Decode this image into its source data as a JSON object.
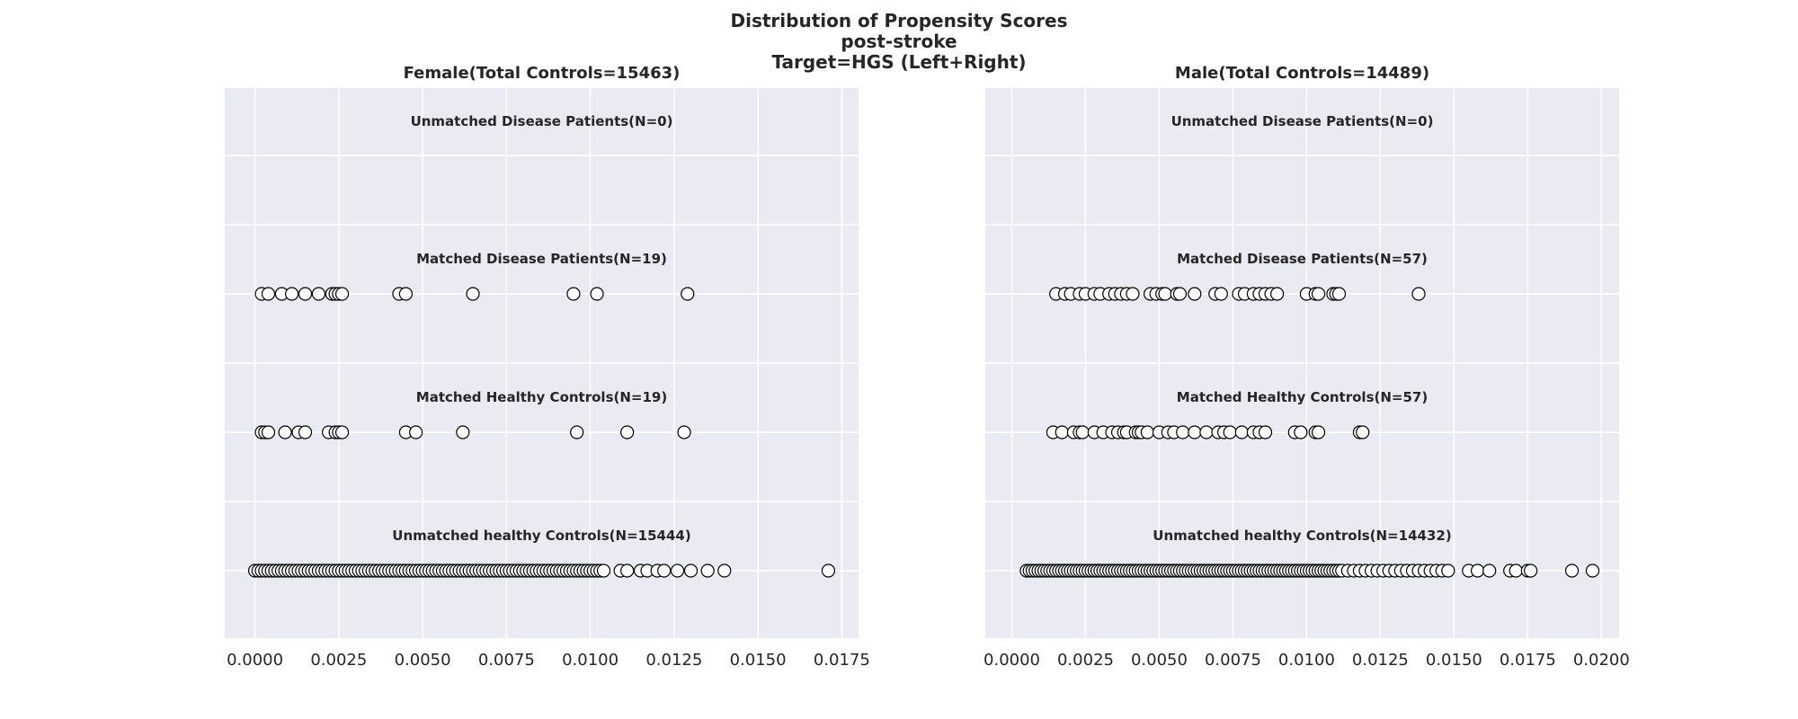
{
  "title_lines": [
    "Distribution of Propensity Scores",
    "post-stroke",
    "Target=HGS (Left+Right)"
  ],
  "style": {
    "panel_bg": "#EAEAF2",
    "grid": "#FFFFFF",
    "marker_edge": "#000000",
    "marker_face": "#FFFFFF"
  },
  "chart_data": [
    {
      "type": "scatter",
      "title": "Female(Total Controls=15463)",
      "xlim": [
        -0.0009,
        0.018
      ],
      "xticks": [
        "0.0000",
        "0.0025",
        "0.0050",
        "0.0075",
        "0.0100",
        "0.0125",
        "0.0150",
        "0.0175"
      ],
      "grid": true,
      "rows": [
        {
          "label": "Unmatched Disease Patients(N=0)",
          "x": []
        },
        {
          "label": "Matched Disease Patients(N=19)",
          "x": [
            0.0002,
            0.0004,
            0.0008,
            0.0011,
            0.0015,
            0.0019,
            0.0023,
            0.0024,
            0.0025,
            0.0026,
            0.0043,
            0.0045,
            0.0065,
            0.0095,
            0.0102,
            0.0129
          ]
        },
        {
          "label": "Matched Healthy Controls(N=19)",
          "x": [
            0.0002,
            0.0003,
            0.0004,
            0.0009,
            0.0013,
            0.0015,
            0.0022,
            0.0024,
            0.0025,
            0.0026,
            0.0045,
            0.0048,
            0.0062,
            0.0096,
            0.0111,
            0.0128
          ]
        },
        {
          "label": "Unmatched healthy Controls(N=15444)",
          "x": [
            0.0,
            0.0001,
            0.0002,
            0.0003,
            0.0004,
            0.0005,
            0.0006,
            0.0007,
            0.0008,
            0.0009,
            0.001,
            0.0011,
            0.0012,
            0.0013,
            0.0014,
            0.0015,
            0.0016,
            0.0017,
            0.0018,
            0.0019,
            0.002,
            0.0021,
            0.0022,
            0.0023,
            0.0024,
            0.0025,
            0.0026,
            0.0027,
            0.0028,
            0.0029,
            0.003,
            0.0031,
            0.0032,
            0.0033,
            0.0034,
            0.0035,
            0.0036,
            0.0037,
            0.0038,
            0.0039,
            0.004,
            0.0041,
            0.0042,
            0.0043,
            0.0044,
            0.0045,
            0.0046,
            0.0047,
            0.0048,
            0.0049,
            0.005,
            0.0051,
            0.0052,
            0.0053,
            0.0054,
            0.0055,
            0.0056,
            0.0057,
            0.0058,
            0.0059,
            0.006,
            0.0061,
            0.0062,
            0.0063,
            0.0064,
            0.0065,
            0.0066,
            0.0067,
            0.0068,
            0.0069,
            0.007,
            0.0071,
            0.0072,
            0.0073,
            0.0074,
            0.0075,
            0.0076,
            0.0077,
            0.0078,
            0.0079,
            0.008,
            0.0081,
            0.0082,
            0.0083,
            0.0084,
            0.0085,
            0.0086,
            0.0087,
            0.0088,
            0.0089,
            0.009,
            0.0091,
            0.0092,
            0.0093,
            0.0094,
            0.0095,
            0.0096,
            0.0097,
            0.0098,
            0.0099,
            0.01,
            0.0101,
            0.0102,
            0.0103,
            0.0104,
            0.0109,
            0.0111,
            0.0115,
            0.0117,
            0.012,
            0.0122,
            0.0126,
            0.013,
            0.0135,
            0.014,
            0.0171
          ]
        }
      ]
    },
    {
      "type": "scatter",
      "title": "Male(Total Controls=14489)",
      "xlim": [
        -0.0009,
        0.0206
      ],
      "xticks": [
        "0.0000",
        "0.0025",
        "0.0050",
        "0.0075",
        "0.0100",
        "0.0125",
        "0.0150",
        "0.0175",
        "0.0200"
      ],
      "grid": true,
      "rows": [
        {
          "label": "Unmatched Disease Patients(N=0)",
          "x": []
        },
        {
          "label": "Matched Disease Patients(N=57)",
          "x": [
            0.0015,
            0.0018,
            0.002,
            0.0023,
            0.0025,
            0.0028,
            0.003,
            0.0033,
            0.0035,
            0.0037,
            0.0039,
            0.0041,
            0.0047,
            0.0049,
            0.0051,
            0.0052,
            0.0056,
            0.0057,
            0.0062,
            0.0069,
            0.0071,
            0.0077,
            0.0079,
            0.0082,
            0.0084,
            0.0086,
            0.0088,
            0.009,
            0.01,
            0.0103,
            0.0104,
            0.0109,
            0.011,
            0.0111,
            0.0138
          ]
        },
        {
          "label": "Matched Healthy Controls(N=57)",
          "x": [
            0.0014,
            0.0017,
            0.0021,
            0.0023,
            0.0024,
            0.0028,
            0.0031,
            0.0034,
            0.0036,
            0.0038,
            0.0039,
            0.0042,
            0.0043,
            0.0044,
            0.0046,
            0.005,
            0.0053,
            0.0055,
            0.0058,
            0.0062,
            0.0066,
            0.007,
            0.0072,
            0.0074,
            0.0078,
            0.0082,
            0.0084,
            0.0086,
            0.0096,
            0.0098,
            0.0103,
            0.0104,
            0.0118,
            0.0119
          ]
        },
        {
          "label": "Unmatched healthy Controls(N=14432)",
          "x": [
            0.0005,
            0.0006,
            0.0007,
            0.0008,
            0.0009,
            0.001,
            0.0011,
            0.0012,
            0.0013,
            0.0014,
            0.0015,
            0.0016,
            0.0017,
            0.0018,
            0.0019,
            0.002,
            0.0021,
            0.0022,
            0.0023,
            0.0024,
            0.0025,
            0.0026,
            0.0027,
            0.0028,
            0.0029,
            0.003,
            0.0031,
            0.0032,
            0.0033,
            0.0034,
            0.0035,
            0.0036,
            0.0037,
            0.0038,
            0.0039,
            0.004,
            0.0041,
            0.0042,
            0.0043,
            0.0044,
            0.0045,
            0.0046,
            0.0047,
            0.0048,
            0.0049,
            0.005,
            0.0051,
            0.0052,
            0.0053,
            0.0054,
            0.0055,
            0.0056,
            0.0057,
            0.0058,
            0.0059,
            0.006,
            0.0061,
            0.0062,
            0.0063,
            0.0064,
            0.0065,
            0.0066,
            0.0067,
            0.0068,
            0.0069,
            0.007,
            0.0071,
            0.0072,
            0.0073,
            0.0074,
            0.0075,
            0.0076,
            0.0077,
            0.0078,
            0.0079,
            0.008,
            0.0081,
            0.0082,
            0.0083,
            0.0084,
            0.0085,
            0.0086,
            0.0087,
            0.0088,
            0.0089,
            0.009,
            0.0091,
            0.0092,
            0.0093,
            0.0094,
            0.0095,
            0.0096,
            0.0097,
            0.0098,
            0.0099,
            0.01,
            0.0101,
            0.0102,
            0.0103,
            0.0104,
            0.0105,
            0.0106,
            0.0107,
            0.0108,
            0.0109,
            0.011,
            0.0111,
            0.0112,
            0.0114,
            0.0116,
            0.0118,
            0.012,
            0.0122,
            0.0124,
            0.0126,
            0.0128,
            0.013,
            0.0132,
            0.0134,
            0.0136,
            0.0138,
            0.014,
            0.0142,
            0.0144,
            0.0146,
            0.0148,
            0.0155,
            0.0158,
            0.0162,
            0.0169,
            0.0171,
            0.0175,
            0.0176,
            0.019,
            0.0197
          ]
        }
      ]
    }
  ]
}
